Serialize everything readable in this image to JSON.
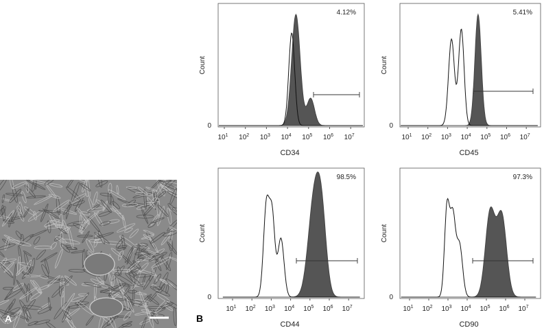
{
  "panel_a": {
    "label": "A"
  },
  "panel_b": {
    "label": "B",
    "plots": [
      {
        "marker": "CD34",
        "percent": "4.12%",
        "y_label": "Count",
        "y_zero": "0",
        "x_ticks": [
          {
            "base": "10",
            "exp": "1"
          },
          {
            "base": "10",
            "exp": "2"
          },
          {
            "base": "10",
            "exp": "3"
          },
          {
            "base": "10",
            "exp": "4"
          },
          {
            "base": "10",
            "exp": "5"
          },
          {
            "base": "10",
            "exp": "6"
          },
          {
            "base": "10",
            "exp": "7"
          }
        ]
      },
      {
        "marker": "CD45",
        "percent": "5.41%",
        "y_label": "Count",
        "y_zero": "0",
        "x_ticks": [
          {
            "base": "10",
            "exp": "1"
          },
          {
            "base": "10",
            "exp": "2"
          },
          {
            "base": "10",
            "exp": "3"
          },
          {
            "base": "10",
            "exp": "4"
          },
          {
            "base": "10",
            "exp": "5"
          },
          {
            "base": "10",
            "exp": "6"
          },
          {
            "base": "10",
            "exp": "7"
          }
        ]
      },
      {
        "marker": "CD44",
        "percent": "98.5%",
        "y_label": "Count",
        "y_zero": "0",
        "x_ticks": [
          {
            "base": "10",
            "exp": "1"
          },
          {
            "base": "10",
            "exp": "2"
          },
          {
            "base": "10",
            "exp": "3"
          },
          {
            "base": "10",
            "exp": "4"
          },
          {
            "base": "10",
            "exp": "5"
          },
          {
            "base": "10",
            "exp": "6"
          },
          {
            "base": "10",
            "exp": "7"
          }
        ]
      },
      {
        "marker": "CD90",
        "percent": "97.3%",
        "y_label": "Count",
        "y_zero": "0",
        "x_ticks": [
          {
            "base": "10",
            "exp": "1"
          },
          {
            "base": "10",
            "exp": "2"
          },
          {
            "base": "10",
            "exp": "3"
          },
          {
            "base": "10",
            "exp": "4"
          },
          {
            "base": "10",
            "exp": "5"
          },
          {
            "base": "10",
            "exp": "6"
          },
          {
            "base": "10",
            "exp": "7"
          }
        ]
      }
    ]
  }
}
